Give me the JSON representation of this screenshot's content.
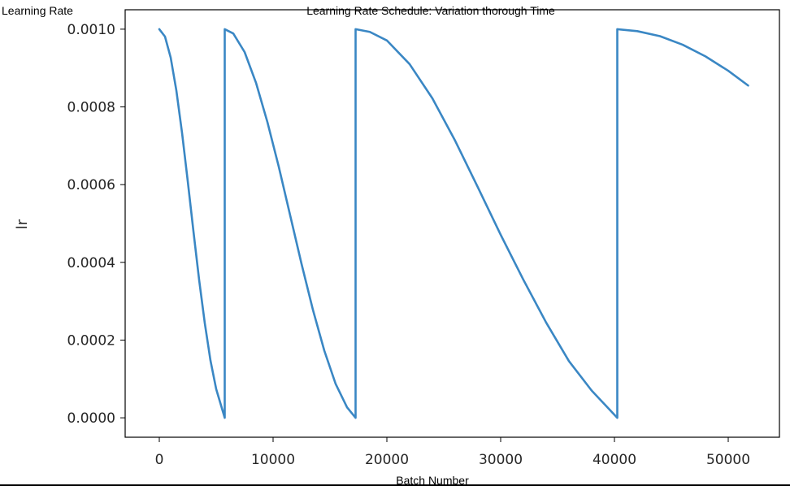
{
  "header": {
    "left_label": "Learning Rate",
    "title": "Learning Rate Schedule: Variation thorough Time"
  },
  "chart_data": {
    "type": "line",
    "title": "Learning Rate Schedule: Variation thorough Time",
    "xlabel": "Batch Number",
    "ylabel": "lr",
    "xlim": [
      -3000,
      54500
    ],
    "ylim": [
      -5e-05,
      0.00105
    ],
    "x_ticks": [
      0,
      10000,
      20000,
      30000,
      40000,
      50000
    ],
    "x_tick_labels": [
      "0",
      "10000",
      "20000",
      "30000",
      "40000",
      "50000"
    ],
    "y_ticks": [
      0.0,
      0.0002,
      0.0004,
      0.0006,
      0.0008,
      0.001
    ],
    "y_tick_labels": [
      "0.0000",
      "0.0002",
      "0.0004",
      "0.0006",
      "0.0008",
      "0.0010"
    ],
    "grid": false,
    "line_color": "#3a87c4",
    "series": [
      {
        "x": [
          0,
          500,
          1000,
          1500,
          2000,
          2500,
          3000,
          3500,
          4000,
          4500,
          5000,
          5750,
          5751,
          6500,
          7500,
          8500,
          9500,
          10500,
          11500,
          12500,
          13500,
          14500,
          15500,
          16500,
          17250,
          17251,
          18500,
          20000,
          22000,
          24000,
          26000,
          28000,
          30000,
          32000,
          34000,
          36000,
          38000,
          40250,
          40251,
          42000,
          44000,
          46000,
          48000,
          50000,
          51750
        ],
        "y": [
          0.001,
          0.000981,
          0.000927,
          0.000842,
          0.000733,
          0.000609,
          0.00048,
          0.000355,
          0.000243,
          0.000147,
          7.4e-05,
          0.0,
          0.001,
          0.000989,
          0.000941,
          0.000862,
          0.000761,
          0.000646,
          0.000521,
          0.000396,
          0.000278,
          0.000173,
          8.7e-05,
          2.7e-05,
          0.0,
          0.001,
          0.000993,
          0.000971,
          0.00091,
          0.000822,
          0.000713,
          0.000593,
          0.000471,
          0.000355,
          0.000245,
          0.000146,
          7e-05,
          0.0,
          0.001,
          0.000995,
          0.000982,
          0.00096,
          0.00093,
          0.000893,
          0.000855
        ]
      }
    ]
  }
}
